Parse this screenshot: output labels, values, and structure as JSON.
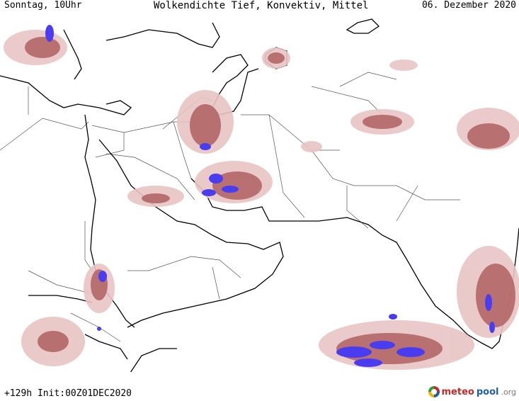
{
  "header": {
    "left": "Sonntag, 10Uhr",
    "center": "Wolkendichte  Tief, Konvektiv, Mittel",
    "right": "06. Dezember 2020"
  },
  "footer": {
    "run_info": "+129h Init:00Z01DEC2020",
    "logo_part1": "meteo",
    "logo_part2": "pool",
    "logo_part3": ".org"
  },
  "colors": {
    "cloud_light": "#e8c4c4",
    "cloud_medium": "#b06060",
    "cloud_dark": "#8b2e2e",
    "cloud_dense": "#4a3df0",
    "coastline": "#000000",
    "border": "#555555"
  },
  "icons": {
    "logo": "meteopool-logo-icon"
  }
}
